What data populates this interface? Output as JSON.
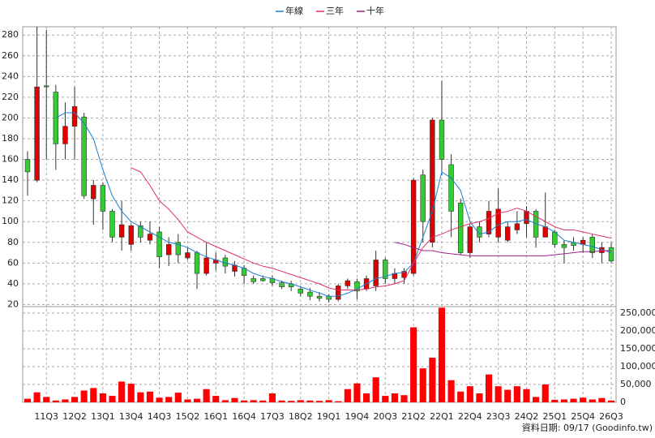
{
  "chart_data": {
    "type": "candlestick",
    "categories": [
      null,
      null,
      "11Q3",
      null,
      null,
      "12Q2",
      null,
      null,
      "13Q1",
      null,
      null,
      "13Q4",
      null,
      null,
      "14Q3",
      null,
      null,
      "15Q2",
      null,
      null,
      "16Q1",
      null,
      null,
      "16Q4",
      null,
      null,
      "17Q3",
      null,
      null,
      "18Q2",
      null,
      null,
      "19Q1",
      null,
      null,
      "19Q4",
      null,
      null,
      "20Q3",
      null,
      null,
      "21Q2",
      null,
      null,
      "22Q1",
      null,
      null,
      "22Q4",
      null,
      null,
      "23Q3",
      null,
      null,
      "24Q2",
      null,
      null,
      "25Q1",
      null,
      null,
      "25Q4",
      null,
      null,
      "26Q3"
    ],
    "open": [
      160,
      140,
      231,
      225,
      175,
      192,
      201,
      122,
      135,
      110,
      85,
      78,
      96,
      82,
      90,
      68,
      80,
      65,
      70,
      50,
      60,
      65,
      52,
      55,
      45,
      45,
      45,
      41,
      40,
      35,
      32,
      28,
      28,
      25,
      38,
      42,
      35,
      38,
      63,
      45,
      46,
      50,
      145,
      80,
      198,
      155,
      118,
      70,
      95,
      88,
      85,
      82,
      92,
      98,
      110,
      85,
      90,
      78,
      80,
      78,
      85,
      70,
      75
    ],
    "high": [
      168,
      288,
      285,
      232,
      215,
      230,
      205,
      140,
      138,
      112,
      120,
      98,
      100,
      100,
      95,
      85,
      88,
      75,
      72,
      80,
      70,
      68,
      62,
      58,
      48,
      48,
      48,
      43,
      43,
      37,
      36,
      32,
      30,
      40,
      45,
      45,
      48,
      72,
      65,
      55,
      55,
      142,
      150,
      200,
      236,
      165,
      122,
      98,
      100,
      120,
      132,
      100,
      110,
      115,
      112,
      128,
      92,
      82,
      85,
      85,
      88,
      80,
      80
    ],
    "low": [
      125,
      138,
      160,
      150,
      160,
      160,
      122,
      97,
      92,
      80,
      72,
      72,
      80,
      78,
      55,
      57,
      60,
      63,
      35,
      48,
      53,
      50,
      47,
      40,
      40,
      42,
      38,
      35,
      33,
      28,
      24,
      23,
      22,
      23,
      35,
      25,
      33,
      33,
      40,
      40,
      40,
      48,
      80,
      75,
      145,
      85,
      68,
      65,
      80,
      85,
      80,
      80,
      88,
      85,
      75,
      85,
      75,
      60,
      72,
      70,
      65,
      60,
      60
    ],
    "close": [
      148,
      230,
      230,
      175,
      192,
      211,
      125,
      135,
      110,
      85,
      97,
      96,
      85,
      88,
      66,
      78,
      68,
      70,
      50,
      65,
      63,
      57,
      58,
      48,
      42,
      43,
      41,
      37,
      37,
      31,
      28,
      26,
      25,
      38,
      43,
      33,
      45,
      63,
      45,
      50,
      52,
      140,
      100,
      198,
      160,
      110,
      70,
      95,
      85,
      110,
      112,
      95,
      98,
      110,
      85,
      95,
      78,
      75,
      77,
      82,
      70,
      75,
      62
    ],
    "up_color": "#e00000",
    "down_color": "#33cc33",
    "series": [
      {
        "name": "年線",
        "color": "#1a7fd0",
        "values": [
          null,
          null,
          null,
          200,
          205,
          205,
          195,
          180,
          150,
          125,
          110,
          100,
          95,
          90,
          85,
          80,
          78,
          75,
          70,
          66,
          63,
          60,
          58,
          55,
          50,
          47,
          45,
          42,
          40,
          37,
          34,
          31,
          28,
          28,
          31,
          35,
          40,
          45,
          47,
          50,
          51,
          60,
          85,
          110,
          148,
          142,
          130,
          100,
          88,
          90,
          97,
          100,
          100,
          102,
          98,
          95,
          90,
          82,
          80,
          78,
          76,
          73,
          70
        ]
      },
      {
        "name": "三年",
        "color": "#e0306a",
        "values": [
          null,
          null,
          null,
          null,
          null,
          null,
          null,
          null,
          null,
          null,
          null,
          152,
          148,
          135,
          120,
          112,
          102,
          90,
          85,
          80,
          76,
          72,
          68,
          64,
          60,
          57,
          55,
          52,
          49,
          46,
          43,
          40,
          36,
          34,
          34,
          34,
          35,
          37,
          38,
          40,
          43,
          60,
          75,
          85,
          88,
          92,
          95,
          98,
          100,
          103,
          108,
          110,
          113,
          110,
          105,
          100,
          95,
          92,
          92,
          90,
          88,
          86,
          84
        ]
      },
      {
        "name": "十年",
        "color": "#a0208a",
        "values": [
          null,
          null,
          null,
          null,
          null,
          null,
          null,
          null,
          null,
          null,
          null,
          null,
          null,
          null,
          null,
          null,
          null,
          null,
          null,
          null,
          null,
          null,
          null,
          null,
          null,
          null,
          null,
          null,
          null,
          null,
          null,
          null,
          null,
          null,
          null,
          null,
          null,
          null,
          null,
          80,
          78,
          75,
          72,
          72,
          70,
          69,
          68,
          67,
          67,
          67,
          67,
          67,
          67,
          67,
          67,
          67,
          68,
          69,
          70,
          71,
          71,
          72,
          72
        ]
      }
    ],
    "volume": [
      10000,
      28000,
      15000,
      5000,
      8000,
      15000,
      33000,
      40000,
      25000,
      18000,
      58000,
      52000,
      28000,
      30000,
      13000,
      15000,
      27000,
      8000,
      10000,
      37000,
      18000,
      6000,
      12000,
      5000,
      6000,
      5000,
      25000,
      5000,
      4000,
      6000,
      5000,
      4000,
      6000,
      3000,
      37000,
      53000,
      25000,
      70000,
      18000,
      25000,
      20000,
      210000,
      95000,
      125000,
      265000,
      62000,
      30000,
      45000,
      25000,
      78000,
      45000,
      35000,
      45000,
      37000,
      15000,
      50000,
      7000,
      8000,
      10000,
      13000,
      8000,
      12000,
      5000
    ],
    "volume_color": "#ff0000",
    "ylim": [
      18,
      288
    ],
    "yticks": [
      20,
      40,
      60,
      80,
      100,
      120,
      140,
      160,
      180,
      200,
      220,
      240,
      260,
      280
    ],
    "y2lim": [
      0,
      268000
    ],
    "y2ticks": [
      0,
      {
        "value": 50000,
        "label": "50,000"
      },
      {
        "value": 100000,
        "label": "100,000"
      },
      {
        "value": 150000,
        "label": "150,000"
      },
      {
        "value": 200000,
        "label": "200,000"
      },
      {
        "value": 250000,
        "label": "250,000"
      }
    ],
    "grid": true,
    "note": "資料日期: 09/17  (Goodinfo.tw)"
  }
}
